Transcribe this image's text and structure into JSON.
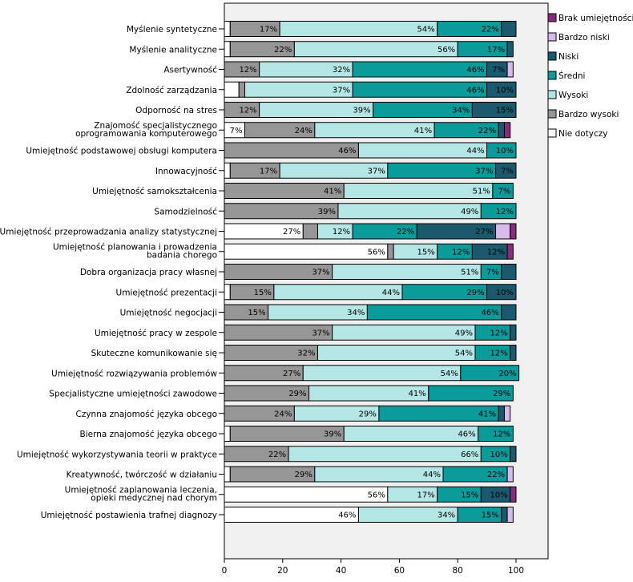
{
  "chart_data": {
    "type": "bar",
    "orientation": "horizontal",
    "stacked": true,
    "percent_axis": true,
    "xlim": [
      0,
      100
    ],
    "xticks": [
      0,
      20,
      40,
      60,
      80,
      100
    ],
    "legend_position": "right",
    "series": [
      {
        "name": "Nie dotyczy",
        "color": "#ffffff"
      },
      {
        "name": "Bardzo wysoki",
        "color": "#969696"
      },
      {
        "name": "Wysoki",
        "color": "#b4e6e6"
      },
      {
        "name": "Średni",
        "color": "#0a9b9b"
      },
      {
        "name": "Niski",
        "color": "#1b5a6e"
      },
      {
        "name": "Bardzo niski",
        "color": "#d9b8ec"
      },
      {
        "name": "Brak umiejętności",
        "color": "#8b2a7c"
      }
    ],
    "legend_order": [
      "Brak umiejętności",
      "Bardzo niski",
      "Niski",
      "Średni",
      "Wysoki",
      "Bardzo wysoki",
      "Nie dotyczy"
    ],
    "categories": [
      {
        "label": [
          "Myślenie syntetyczne"
        ],
        "values": [
          2,
          17,
          54,
          22,
          5,
          0,
          0
        ],
        "labels": [
          null,
          "17%",
          "54%",
          "22%",
          null,
          null,
          null
        ]
      },
      {
        "label": [
          "Myślenie analityczne"
        ],
        "values": [
          2,
          22,
          56,
          17,
          2,
          0,
          0
        ],
        "labels": [
          null,
          "22%",
          "56%",
          "17%",
          null,
          null,
          null
        ]
      },
      {
        "label": [
          "Asertywność"
        ],
        "values": [
          0,
          12,
          32,
          46,
          7,
          2,
          0
        ],
        "labels": [
          null,
          "12%",
          "32%",
          "46%",
          "7%",
          null,
          null
        ]
      },
      {
        "label": [
          "Zdolność zarządzania"
        ],
        "values": [
          5,
          2,
          37,
          46,
          10,
          0,
          0
        ],
        "labels": [
          null,
          null,
          "37%",
          "46%",
          "10%",
          null,
          null
        ]
      },
      {
        "label": [
          "Odporność na stres"
        ],
        "values": [
          0,
          12,
          39,
          34,
          15,
          0,
          0
        ],
        "labels": [
          null,
          "12%",
          "39%",
          "34%",
          "15%",
          null,
          null
        ]
      },
      {
        "label": [
          "Znajomość specjalistycznego",
          "oprogramowania komputerowego"
        ],
        "values": [
          7,
          24,
          41,
          22,
          2,
          0,
          2
        ],
        "labels": [
          "7%",
          "24%",
          "41%",
          "22%",
          null,
          null,
          null
        ]
      },
      {
        "label": [
          "Umiejętność podstawowej obsługi komputera"
        ],
        "values": [
          0,
          46,
          44,
          10,
          0,
          0,
          0
        ],
        "labels": [
          null,
          "46%",
          "44%",
          "10%",
          null,
          null,
          null
        ]
      },
      {
        "label": [
          "Innowacyjność"
        ],
        "values": [
          2,
          17,
          37,
          37,
          7,
          0,
          0
        ],
        "labels": [
          null,
          "17%",
          "37%",
          "37%",
          "7%",
          null,
          null
        ]
      },
      {
        "label": [
          "Umiejętność samokształcenia"
        ],
        "values": [
          0,
          41,
          51,
          7,
          0,
          0,
          0
        ],
        "labels": [
          null,
          "41%",
          "51%",
          "7%",
          null,
          null,
          null
        ]
      },
      {
        "label": [
          "Samodzielność"
        ],
        "values": [
          0,
          39,
          49,
          12,
          0,
          0,
          0
        ],
        "labels": [
          null,
          "39%",
          "49%",
          "12%",
          null,
          null,
          null
        ]
      },
      {
        "label": [
          "Umiejętność przeprowadzania analizy statystycznej"
        ],
        "values": [
          27,
          5,
          12,
          22,
          27,
          5,
          2
        ],
        "labels": [
          "27%",
          null,
          "12%",
          "22%",
          "27%",
          null,
          null
        ]
      },
      {
        "label": [
          "Umiejętność planowania i prowadzenia",
          "badania chorego"
        ],
        "values": [
          56,
          2,
          15,
          12,
          12,
          0,
          2
        ],
        "labels": [
          "56%",
          null,
          "15%",
          "12%",
          "12%",
          null,
          null
        ]
      },
      {
        "label": [
          "Dobra organizacja pracy własnej"
        ],
        "values": [
          0,
          37,
          51,
          7,
          5,
          0,
          0
        ],
        "labels": [
          null,
          "37%",
          "51%",
          "7%",
          null,
          null,
          null
        ]
      },
      {
        "label": [
          "Umiejętność prezentacji"
        ],
        "values": [
          2,
          15,
          44,
          29,
          10,
          0,
          0
        ],
        "labels": [
          null,
          "15%",
          "44%",
          "29%",
          "10%",
          null,
          null
        ]
      },
      {
        "label": [
          "Umiejętność negocjacji"
        ],
        "values": [
          0,
          15,
          34,
          46,
          5,
          0,
          0
        ],
        "labels": [
          null,
          "15%",
          "34%",
          "46%",
          null,
          null,
          null
        ]
      },
      {
        "label": [
          "Umiejętność pracy w zespole"
        ],
        "values": [
          0,
          37,
          49,
          12,
          2,
          0,
          0
        ],
        "labels": [
          null,
          "37%",
          "49%",
          "12%",
          null,
          null,
          null
        ]
      },
      {
        "label": [
          "Skuteczne komunikowanie się"
        ],
        "values": [
          0,
          32,
          54,
          12,
          2,
          0,
          0
        ],
        "labels": [
          null,
          "32%",
          "54%",
          "12%",
          null,
          null,
          null
        ]
      },
      {
        "label": [
          "Umiejętność rozwiązywania problemów"
        ],
        "values": [
          0,
          27,
          54,
          20,
          0,
          0,
          0
        ],
        "labels": [
          null,
          "27%",
          "54%",
          "20%",
          null,
          null,
          null
        ]
      },
      {
        "label": [
          "Specjalistyczne umiejętności zawodowe"
        ],
        "values": [
          0,
          29,
          41,
          29,
          0,
          0,
          0
        ],
        "labels": [
          null,
          "29%",
          "41%",
          "29%",
          null,
          null,
          null
        ]
      },
      {
        "label": [
          "Czynna znajomość języka obcego"
        ],
        "values": [
          0,
          24,
          29,
          41,
          2,
          2,
          0
        ],
        "labels": [
          null,
          "24%",
          "29%",
          "41%",
          null,
          null,
          null
        ]
      },
      {
        "label": [
          "Bierna znajomość języka obcego"
        ],
        "values": [
          2,
          39,
          46,
          12,
          0,
          0,
          0
        ],
        "labels": [
          null,
          "39%",
          "46%",
          "12%",
          null,
          null,
          null
        ]
      },
      {
        "label": [
          "Umiejętność wykorzystywania teorii w praktyce"
        ],
        "values": [
          0,
          22,
          66,
          10,
          2,
          0,
          0
        ],
        "labels": [
          null,
          "22%",
          "66%",
          "10%",
          null,
          null,
          null
        ]
      },
      {
        "label": [
          "Kreatywność, twórczość w działaniu"
        ],
        "values": [
          2,
          29,
          44,
          22,
          0,
          2,
          0
        ],
        "labels": [
          null,
          "29%",
          "44%",
          "22%",
          null,
          null,
          null
        ]
      },
      {
        "label": [
          "Umiejętność zaplanowania leczenia,",
          "opieki medycznej nad chorym"
        ],
        "values": [
          56,
          0,
          17,
          15,
          10,
          0,
          2
        ],
        "labels": [
          "56%",
          null,
          "17%",
          "15%",
          "10%",
          null,
          null
        ]
      },
      {
        "label": [
          "Umiejętność postawienia trafnej diagnozy"
        ],
        "values": [
          46,
          0,
          34,
          15,
          2,
          2,
          0
        ],
        "labels": [
          "46%",
          null,
          "34%",
          "15%",
          null,
          null,
          null
        ]
      }
    ]
  }
}
